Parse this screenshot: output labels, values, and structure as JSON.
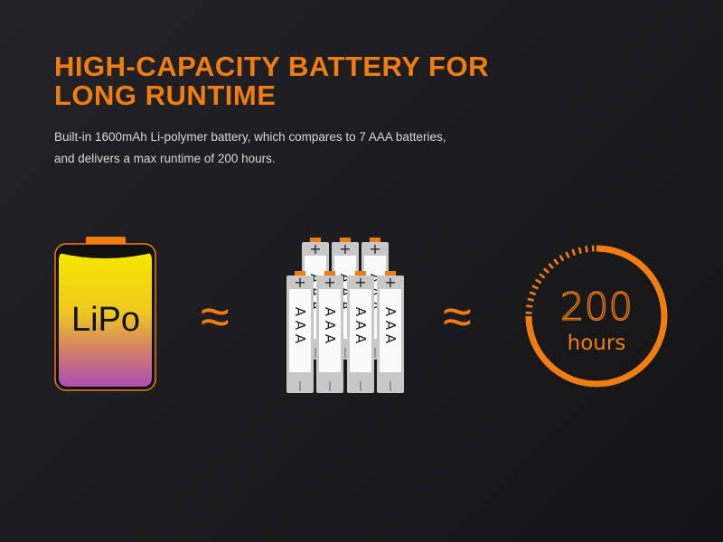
{
  "heading": {
    "line1": "HIGH-CAPACITY BATTERY FOR",
    "line2": "LONG RUNTIME"
  },
  "description": {
    "line1": "Built-in 1600mAh Li-polymer battery, which compares to 7 AAA batteries,",
    "line2": "and delivers a max runtime of 200 hours."
  },
  "lipo": {
    "label": "LiPo"
  },
  "approx_symbol": "≈",
  "aaa": {
    "count": 7,
    "label_letter": "A",
    "plus": "+",
    "minus": "|"
  },
  "runtime": {
    "value": "200",
    "unit": "hours"
  },
  "colors": {
    "accent": "#f07d12",
    "lipo_top": "#f5e400",
    "lipo_bottom": "#b155b0",
    "battery_body": "#c8c8c8"
  }
}
